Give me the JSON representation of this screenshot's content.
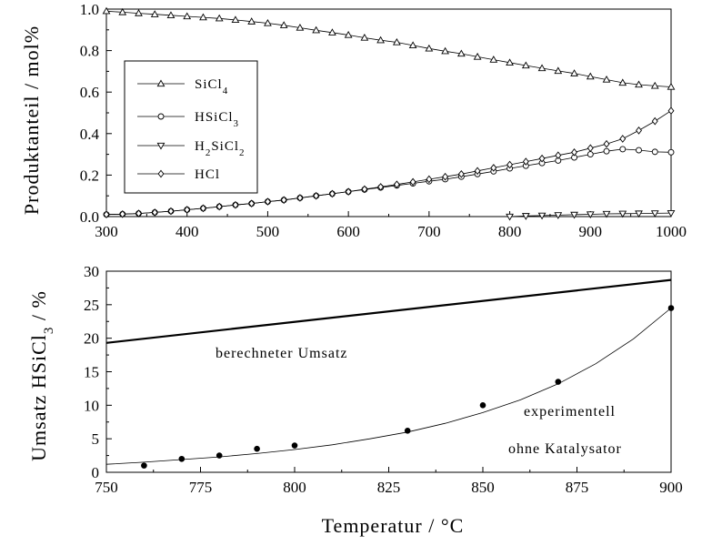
{
  "chart_data": [
    {
      "type": "line",
      "title": "",
      "ylabel": "Produktanteil / mol%",
      "xlim": [
        300,
        1000
      ],
      "ylim": [
        0,
        1.0
      ],
      "xticks": [
        "300",
        "400",
        "500",
        "600",
        "700",
        "800",
        "900",
        "1000"
      ],
      "yticks": [
        "0.0",
        "0.2",
        "0.4",
        "0.6",
        "0.8",
        "1.0"
      ],
      "legend_position": "upper-left",
      "series": [
        {
          "name": "SiCl4",
          "name_base": "SiCl",
          "name_sub": "4",
          "marker": "triangle-up",
          "x": [
            300,
            320,
            340,
            360,
            380,
            400,
            420,
            440,
            460,
            480,
            500,
            520,
            540,
            560,
            580,
            600,
            620,
            640,
            660,
            680,
            700,
            720,
            740,
            760,
            780,
            800,
            820,
            840,
            860,
            880,
            900,
            920,
            940,
            960,
            980,
            1000
          ],
          "values": [
            0.99,
            0.985,
            0.98,
            0.975,
            0.97,
            0.965,
            0.96,
            0.955,
            0.948,
            0.94,
            0.932,
            0.922,
            0.91,
            0.898,
            0.887,
            0.875,
            0.862,
            0.85,
            0.84,
            0.825,
            0.81,
            0.797,
            0.785,
            0.77,
            0.756,
            0.742,
            0.728,
            0.715,
            0.702,
            0.69,
            0.675,
            0.66,
            0.645,
            0.636,
            0.63,
            0.625
          ]
        },
        {
          "name": "HSiCl3",
          "name_base": "HSiCl",
          "name_sub": "3",
          "marker": "circle",
          "x": [
            300,
            320,
            340,
            360,
            380,
            400,
            420,
            440,
            460,
            480,
            500,
            520,
            540,
            560,
            580,
            600,
            620,
            640,
            660,
            680,
            700,
            720,
            740,
            760,
            780,
            800,
            820,
            840,
            860,
            880,
            900,
            920,
            940,
            960,
            980,
            1000
          ],
          "values": [
            0.01,
            0.012,
            0.015,
            0.02,
            0.026,
            0.033,
            0.04,
            0.048,
            0.056,
            0.063,
            0.072,
            0.08,
            0.09,
            0.1,
            0.11,
            0.12,
            0.13,
            0.14,
            0.15,
            0.16,
            0.17,
            0.18,
            0.192,
            0.205,
            0.218,
            0.232,
            0.245,
            0.258,
            0.27,
            0.285,
            0.3,
            0.315,
            0.325,
            0.32,
            0.312,
            0.31
          ]
        },
        {
          "name": "H2SiCl2",
          "name_base": "H",
          "name_sub": "2",
          "name_mid": "SiCl",
          "name_sub2": "2",
          "marker": "triangle-down",
          "x": [
            800,
            820,
            840,
            860,
            880,
            900,
            920,
            940,
            960,
            980,
            1000
          ],
          "values": [
            0.0,
            0.003,
            0.005,
            0.007,
            0.009,
            0.011,
            0.013,
            0.014,
            0.015,
            0.016,
            0.017
          ]
        },
        {
          "name": "HCl",
          "name_base": "HCl",
          "marker": "diamond",
          "x": [
            300,
            320,
            340,
            360,
            380,
            400,
            420,
            440,
            460,
            480,
            500,
            520,
            540,
            560,
            580,
            600,
            620,
            640,
            660,
            680,
            700,
            720,
            740,
            760,
            780,
            800,
            820,
            840,
            860,
            880,
            900,
            920,
            940,
            960,
            980,
            1000
          ],
          "values": [
            0.01,
            0.012,
            0.015,
            0.02,
            0.026,
            0.033,
            0.04,
            0.048,
            0.056,
            0.063,
            0.072,
            0.08,
            0.09,
            0.1,
            0.11,
            0.12,
            0.132,
            0.143,
            0.155,
            0.167,
            0.18,
            0.192,
            0.205,
            0.22,
            0.235,
            0.25,
            0.265,
            0.28,
            0.295,
            0.31,
            0.33,
            0.35,
            0.375,
            0.415,
            0.46,
            0.51
          ]
        }
      ]
    },
    {
      "type": "line",
      "title": "",
      "xlabel": "Temperatur / °C",
      "ylabel_base": "Umsatz HSiCl",
      "ylabel_sub": "3",
      "ylabel_tail": " / %",
      "xlim": [
        750,
        900
      ],
      "ylim": [
        0,
        30
      ],
      "xticks": [
        "750",
        "775",
        "800",
        "825",
        "850",
        "875",
        "900"
      ],
      "yticks": [
        "0",
        "5",
        "10",
        "15",
        "20",
        "25",
        "30"
      ],
      "series": [
        {
          "label": "berechneter Umsatz",
          "style": "thick-line",
          "x": [
            750,
            900
          ],
          "values": [
            19.3,
            28.7
          ]
        },
        {
          "label_line1": "experimentell",
          "label_line2": "ohne Katalysator",
          "style": "points",
          "x": [
            760,
            770,
            780,
            790,
            800,
            830,
            850,
            870,
            900
          ],
          "values": [
            1.0,
            2.0,
            2.5,
            3.5,
            4.0,
            6.2,
            10.0,
            13.5,
            24.5
          ]
        },
        {
          "style": "thin-fit",
          "x": [
            750,
            760,
            770,
            780,
            790,
            800,
            810,
            820,
            830,
            840,
            850,
            860,
            870,
            880,
            890,
            900
          ],
          "values": [
            1.2,
            1.5,
            1.9,
            2.3,
            2.8,
            3.4,
            4.1,
            5.0,
            6.0,
            7.3,
            8.9,
            10.8,
            13.2,
            16.2,
            19.9,
            24.5
          ]
        }
      ]
    }
  ]
}
